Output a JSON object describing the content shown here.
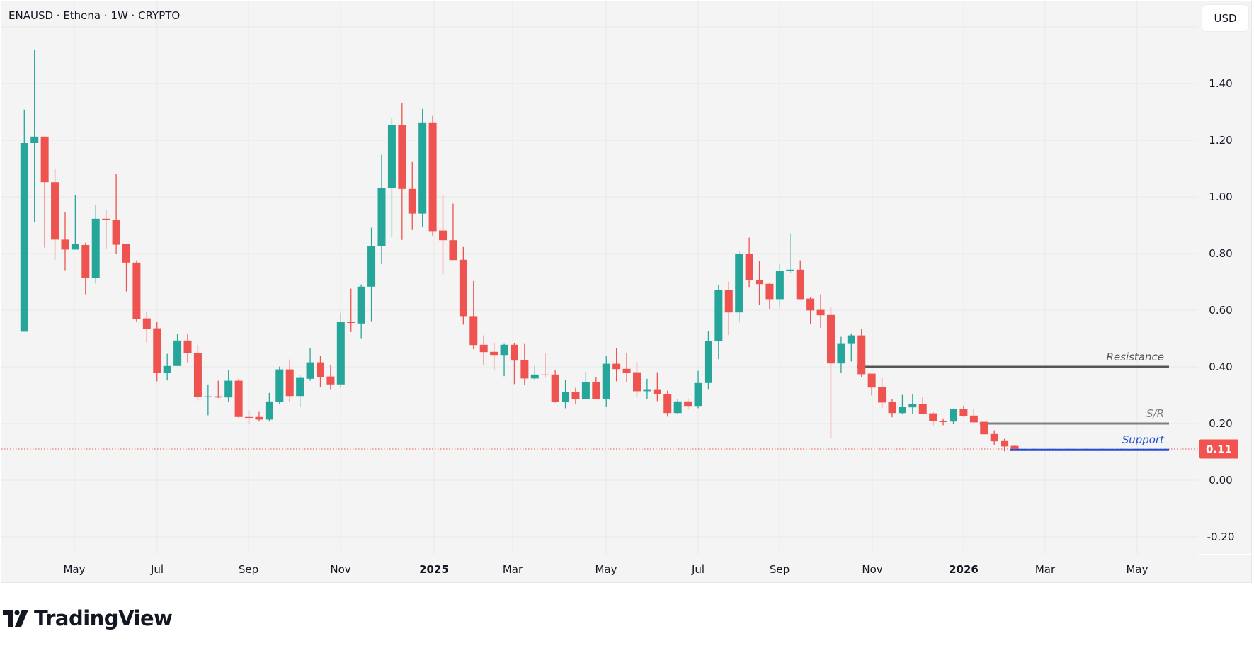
{
  "header": {
    "title": "ENAUSD · Ethena · 1W · CRYPTO",
    "currency_button": "USD"
  },
  "brand": {
    "name": "TradingView"
  },
  "colors": {
    "up": "#26a69a",
    "down": "#ef5350",
    "resistance": "#555555",
    "sr": "#808080",
    "support": "#1e4fd6",
    "last_price": "#f05350",
    "grid": "#e8e8e8"
  },
  "chart_data": {
    "type": "candlestick",
    "title": "ENAUSD · Ethena · 1W · CRYPTO",
    "xlabel": "",
    "ylabel": "USD",
    "ylim": [
      -0.25,
      1.62
    ],
    "grid": true,
    "y_ticks": [
      "1.40",
      "1.20",
      "1.00",
      "0.80",
      "0.60",
      "0.40",
      "0.20",
      "0.00",
      "-0.20"
    ],
    "x_ticks": [
      "May",
      "Jul",
      "Sep",
      "Nov",
      "2025",
      "Mar",
      "May",
      "Jul",
      "Sep",
      "Nov",
      "2026",
      "Mar",
      "May"
    ],
    "x_ticks_bold": [
      false,
      false,
      false,
      false,
      true,
      false,
      false,
      false,
      false,
      false,
      true,
      false,
      false
    ],
    "last_price": "0.11",
    "last_price_value": 0.11,
    "levels": [
      {
        "label": "Resistance",
        "value": 0.4,
        "start_week_index": 82,
        "style": "resistance"
      },
      {
        "label": "S/R",
        "value": 0.2,
        "start_week_index": 94,
        "style": "sr"
      },
      {
        "label": "Support",
        "value": 0.107,
        "start_week_index": 97,
        "style": "support"
      }
    ],
    "candles_ohlc": [
      [
        0.524,
        1.308,
        0.524,
        1.19
      ],
      [
        1.19,
        1.52,
        0.912,
        1.213
      ],
      [
        1.213,
        1.213,
        0.821,
        1.052
      ],
      [
        1.052,
        1.1,
        0.777,
        0.849
      ],
      [
        0.849,
        0.945,
        0.741,
        0.814
      ],
      [
        0.814,
        1.005,
        0.814,
        0.833
      ],
      [
        0.83,
        0.838,
        0.656,
        0.714
      ],
      [
        0.714,
        0.973,
        0.694,
        0.923
      ],
      [
        0.923,
        0.955,
        0.816,
        0.92
      ],
      [
        0.92,
        1.08,
        0.799,
        0.831
      ],
      [
        0.833,
        0.833,
        0.666,
        0.768
      ],
      [
        0.768,
        0.776,
        0.559,
        0.569
      ],
      [
        0.571,
        0.596,
        0.486,
        0.534
      ],
      [
        0.536,
        0.558,
        0.349,
        0.379
      ],
      [
        0.379,
        0.446,
        0.352,
        0.403
      ],
      [
        0.403,
        0.515,
        0.403,
        0.493
      ],
      [
        0.493,
        0.518,
        0.416,
        0.449
      ],
      [
        0.449,
        0.478,
        0.281,
        0.294
      ],
      [
        0.294,
        0.338,
        0.229,
        0.296
      ],
      [
        0.296,
        0.351,
        0.29,
        0.292
      ],
      [
        0.292,
        0.388,
        0.277,
        0.351
      ],
      [
        0.351,
        0.358,
        0.221,
        0.223
      ],
      [
        0.223,
        0.246,
        0.198,
        0.222
      ],
      [
        0.223,
        0.241,
        0.207,
        0.214
      ],
      [
        0.214,
        0.308,
        0.209,
        0.278
      ],
      [
        0.277,
        0.401,
        0.269,
        0.391
      ],
      [
        0.391,
        0.426,
        0.277,
        0.297
      ],
      [
        0.297,
        0.371,
        0.259,
        0.361
      ],
      [
        0.358,
        0.466,
        0.351,
        0.416
      ],
      [
        0.416,
        0.438,
        0.328,
        0.363
      ],
      [
        0.366,
        0.408,
        0.321,
        0.338
      ],
      [
        0.338,
        0.591,
        0.326,
        0.558
      ],
      [
        0.558,
        0.676,
        0.523,
        0.556
      ],
      [
        0.553,
        0.691,
        0.501,
        0.683
      ],
      [
        0.683,
        0.891,
        0.561,
        0.826
      ],
      [
        0.826,
        1.148,
        0.763,
        1.031
      ],
      [
        1.031,
        1.278,
        0.858,
        1.253
      ],
      [
        1.253,
        1.331,
        0.848,
        1.028
      ],
      [
        1.028,
        1.123,
        0.883,
        0.941
      ],
      [
        0.941,
        1.311,
        0.893,
        1.263
      ],
      [
        1.263,
        1.286,
        0.863,
        0.879
      ],
      [
        0.881,
        1.006,
        0.727,
        0.847
      ],
      [
        0.847,
        0.976,
        0.777,
        0.777
      ],
      [
        0.778,
        0.823,
        0.549,
        0.579
      ],
      [
        0.579,
        0.703,
        0.462,
        0.477
      ],
      [
        0.478,
        0.511,
        0.407,
        0.452
      ],
      [
        0.453,
        0.486,
        0.389,
        0.442
      ],
      [
        0.442,
        0.481,
        0.367,
        0.478
      ],
      [
        0.478,
        0.483,
        0.339,
        0.422
      ],
      [
        0.423,
        0.481,
        0.337,
        0.359
      ],
      [
        0.359,
        0.403,
        0.352,
        0.373
      ],
      [
        0.373,
        0.448,
        0.362,
        0.371
      ],
      [
        0.373,
        0.388,
        0.274,
        0.277
      ],
      [
        0.277,
        0.353,
        0.254,
        0.311
      ],
      [
        0.311,
        0.326,
        0.267,
        0.287
      ],
      [
        0.287,
        0.383,
        0.284,
        0.346
      ],
      [
        0.346,
        0.363,
        0.287,
        0.287
      ],
      [
        0.287,
        0.438,
        0.259,
        0.411
      ],
      [
        0.411,
        0.466,
        0.349,
        0.392
      ],
      [
        0.393,
        0.448,
        0.347,
        0.379
      ],
      [
        0.381,
        0.418,
        0.292,
        0.314
      ],
      [
        0.314,
        0.358,
        0.287,
        0.321
      ],
      [
        0.321,
        0.381,
        0.279,
        0.304
      ],
      [
        0.303,
        0.316,
        0.224,
        0.237
      ],
      [
        0.237,
        0.286,
        0.232,
        0.278
      ],
      [
        0.278,
        0.288,
        0.249,
        0.262
      ],
      [
        0.262,
        0.386,
        0.254,
        0.343
      ],
      [
        0.343,
        0.526,
        0.322,
        0.491
      ],
      [
        0.491,
        0.688,
        0.427,
        0.671
      ],
      [
        0.671,
        0.701,
        0.512,
        0.592
      ],
      [
        0.592,
        0.808,
        0.557,
        0.798
      ],
      [
        0.798,
        0.856,
        0.682,
        0.707
      ],
      [
        0.707,
        0.773,
        0.619,
        0.692
      ],
      [
        0.693,
        0.698,
        0.604,
        0.639
      ],
      [
        0.639,
        0.763,
        0.609,
        0.738
      ],
      [
        0.738,
        0.871,
        0.732,
        0.743
      ],
      [
        0.743,
        0.776,
        0.639,
        0.639
      ],
      [
        0.641,
        0.646,
        0.552,
        0.599
      ],
      [
        0.601,
        0.656,
        0.537,
        0.582
      ],
      [
        0.583,
        0.611,
        0.149,
        0.412
      ],
      [
        0.412,
        0.506,
        0.379,
        0.481
      ],
      [
        0.481,
        0.518,
        0.419,
        0.511
      ],
      [
        0.511,
        0.533,
        0.364,
        0.374
      ],
      [
        0.376,
        0.376,
        0.299,
        0.327
      ],
      [
        0.328,
        0.361,
        0.254,
        0.274
      ],
      [
        0.276,
        0.286,
        0.222,
        0.237
      ],
      [
        0.237,
        0.301,
        0.234,
        0.258
      ],
      [
        0.257,
        0.303,
        0.234,
        0.268
      ],
      [
        0.268,
        0.293,
        0.232,
        0.234
      ],
      [
        0.236,
        0.241,
        0.192,
        0.209
      ],
      [
        0.21,
        0.218,
        0.194,
        0.205
      ],
      [
        0.207,
        0.253,
        0.199,
        0.251
      ],
      [
        0.251,
        0.263,
        0.224,
        0.227
      ],
      [
        0.228,
        0.253,
        0.204,
        0.204
      ],
      [
        0.206,
        0.206,
        0.162,
        0.162
      ],
      [
        0.163,
        0.176,
        0.124,
        0.137
      ],
      [
        0.138,
        0.146,
        0.102,
        0.119
      ],
      [
        0.121,
        0.124,
        0.108,
        0.11
      ]
    ]
  }
}
